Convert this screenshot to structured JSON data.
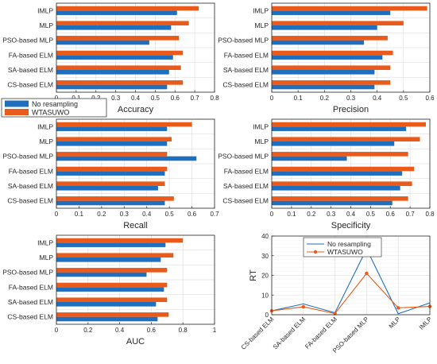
{
  "colors": {
    "no_resampling": "#1f6fbf",
    "wtasuwo": "#ea5a1a",
    "grid": "#e1e1e1",
    "axis": "#262626"
  },
  "legend": {
    "entries": [
      "No resampling",
      "WTASUWO"
    ]
  },
  "chart_data": [
    {
      "id": "accuracy",
      "type": "bar",
      "orientation": "horizontal",
      "xlabel": "Accuracy",
      "xlim": [
        0,
        0.8
      ],
      "xticks": [
        "0",
        "0.1",
        "0.2",
        "0.3",
        "0.4",
        "0.5",
        "0.6",
        "0.7",
        "0.8"
      ],
      "categories": [
        "IMLP",
        "MLP",
        "PSO-based MLP",
        "FA-based ELM",
        "SA-based ELM",
        "CS-based ELM"
      ],
      "series": [
        {
          "name": "No resampling",
          "values": [
            0.61,
            0.58,
            0.47,
            0.59,
            0.57,
            0.56
          ]
        },
        {
          "name": "WTASUWO",
          "values": [
            0.72,
            0.67,
            0.62,
            0.64,
            0.63,
            0.64
          ]
        }
      ]
    },
    {
      "id": "precision",
      "type": "bar",
      "orientation": "horizontal",
      "xlabel": "Precision",
      "xlim": [
        0,
        0.6
      ],
      "xticks": [
        "0",
        "0.1",
        "0.2",
        "0.3",
        "0.4",
        "0.5",
        "0.6"
      ],
      "categories": [
        "IMLP",
        "MLP",
        "PSO-based MLP",
        "FA-based ELM",
        "SA-based ELM",
        "CS-based ELM"
      ],
      "series": [
        {
          "name": "No resampling",
          "values": [
            0.45,
            0.4,
            0.35,
            0.42,
            0.39,
            0.39
          ]
        },
        {
          "name": "WTASUWO",
          "values": [
            0.59,
            0.5,
            0.44,
            0.46,
            0.45,
            0.45
          ]
        }
      ]
    },
    {
      "id": "recall",
      "type": "bar",
      "orientation": "horizontal",
      "xlabel": "Recall",
      "xlim": [
        0,
        0.7
      ],
      "xticks": [
        "0",
        "0.1",
        "0.2",
        "0.3",
        "0.4",
        "0.5",
        "0.6",
        "0.7"
      ],
      "categories": [
        "IMLP",
        "MLP",
        "PSO-based MLP",
        "FA-based ELM",
        "SA-based ELM",
        "CS-based ELM"
      ],
      "series": [
        {
          "name": "No resampling",
          "values": [
            0.49,
            0.49,
            0.62,
            0.48,
            0.45,
            0.48
          ]
        },
        {
          "name": "WTASUWO",
          "values": [
            0.6,
            0.51,
            0.49,
            0.49,
            0.48,
            0.52
          ]
        }
      ]
    },
    {
      "id": "specificity",
      "type": "bar",
      "orientation": "horizontal",
      "xlabel": "Specificity",
      "xlim": [
        0,
        0.8
      ],
      "xticks": [
        "0",
        "0.1",
        "0.2",
        "0.3",
        "0.4",
        "0.5",
        "0.6",
        "0.7",
        "0.8"
      ],
      "categories": [
        "IMLP",
        "MLP",
        "PSO-based MLP",
        "FA-based ELM",
        "SA-based ELM",
        "CS-based ELM"
      ],
      "series": [
        {
          "name": "No resampling",
          "values": [
            0.68,
            0.62,
            0.38,
            0.66,
            0.65,
            0.61
          ]
        },
        {
          "name": "WTASUWO",
          "values": [
            0.78,
            0.75,
            0.69,
            0.72,
            0.71,
            0.69
          ]
        }
      ]
    },
    {
      "id": "auc",
      "type": "bar",
      "orientation": "horizontal",
      "xlabel": "AUC",
      "xlim": [
        0,
        1
      ],
      "xticks": [
        "0",
        "0.2",
        "0.4",
        "0.6",
        "0.8",
        "1"
      ],
      "categories": [
        "IMLP",
        "MLP",
        "PSO-based MLP",
        "FA-based ELM",
        "SA-based ELM",
        "CS-based ELM"
      ],
      "series": [
        {
          "name": "No resampling",
          "values": [
            0.69,
            0.66,
            0.57,
            0.68,
            0.63,
            0.64
          ]
        },
        {
          "name": "WTASUWO",
          "values": [
            0.8,
            0.74,
            0.7,
            0.7,
            0.7,
            0.71
          ]
        }
      ]
    },
    {
      "id": "rt",
      "type": "line",
      "ylabel": "RT",
      "ylim": [
        0,
        40
      ],
      "yticks": [
        "0",
        "10",
        "20",
        "30",
        "40"
      ],
      "categories": [
        "CS-based ELM",
        "SA-based ELM",
        "FA-based ELM",
        "PSO-based MLP",
        "MLP",
        "IMLP"
      ],
      "legend": [
        "No resampling",
        "WTASUWO"
      ],
      "series": [
        {
          "name": "No resampling",
          "values": [
            2,
            5.5,
            1,
            33.5,
            0.5,
            6
          ],
          "marker": "none"
        },
        {
          "name": "WTASUWO",
          "values": [
            2,
            4,
            0.6,
            21,
            3.5,
            4.2
          ],
          "marker": "circle"
        }
      ]
    }
  ]
}
